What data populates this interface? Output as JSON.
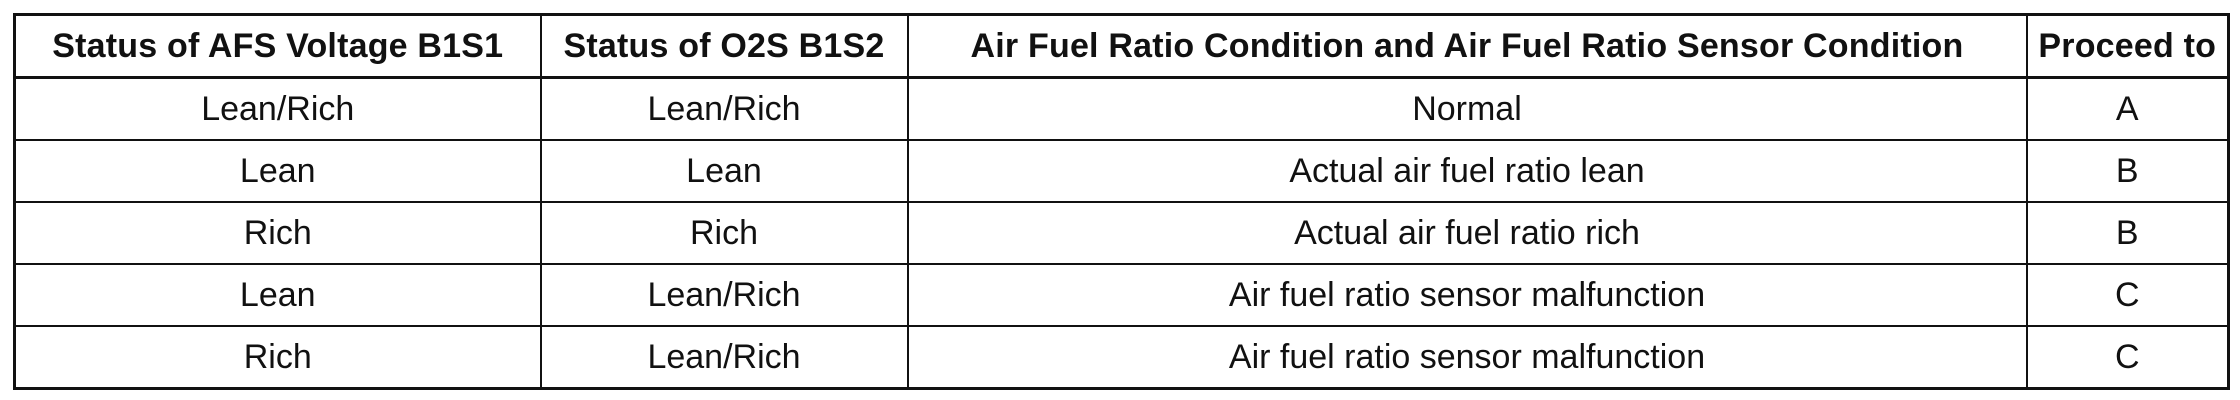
{
  "table": {
    "headers": [
      "Status of AFS Voltage B1S1",
      "Status of O2S B1S2",
      "Air Fuel Ratio Condition and Air Fuel Ratio Sensor Condition",
      "Proceed to"
    ],
    "rows": [
      [
        "Lean/Rich",
        "Lean/Rich",
        "Normal",
        "A"
      ],
      [
        "Lean",
        "Lean",
        "Actual air fuel ratio lean",
        "B"
      ],
      [
        "Rich",
        "Rich",
        "Actual air fuel ratio rich",
        "B"
      ],
      [
        "Lean",
        "Lean/Rich",
        "Air fuel ratio sensor malfunction",
        "C"
      ],
      [
        "Rich",
        "Lean/Rich",
        "Air fuel ratio sensor malfunction",
        "C"
      ]
    ]
  }
}
